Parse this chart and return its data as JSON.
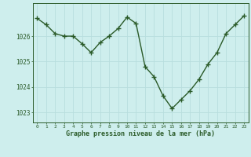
{
  "x": [
    0,
    1,
    2,
    3,
    4,
    5,
    6,
    7,
    8,
    9,
    10,
    11,
    12,
    13,
    14,
    15,
    16,
    17,
    18,
    19,
    20,
    21,
    22,
    23
  ],
  "y": [
    1026.7,
    1026.45,
    1026.1,
    1026.0,
    1026.0,
    1025.7,
    1025.35,
    1025.75,
    1026.0,
    1026.3,
    1026.75,
    1026.5,
    1024.8,
    1024.4,
    1023.65,
    1023.15,
    1023.5,
    1023.85,
    1024.3,
    1024.9,
    1025.35,
    1026.1,
    1026.45,
    1026.8
  ],
  "line_color": "#2a5a28",
  "marker_color": "#2a5a28",
  "bg_color": "#ceeeed",
  "grid_color": "#b8dede",
  "xlabel": "Graphe pression niveau de la mer (hPa)",
  "xlabel_color": "#2a5a28",
  "tick_color": "#2a5a28",
  "ylim": [
    1022.6,
    1027.3
  ],
  "yticks": [
    1023,
    1024,
    1025,
    1026
  ],
  "xticks": [
    0,
    1,
    2,
    3,
    4,
    5,
    6,
    7,
    8,
    9,
    10,
    11,
    12,
    13,
    14,
    15,
    16,
    17,
    18,
    19,
    20,
    21,
    22,
    23
  ],
  "marker_size": 4,
  "line_width": 1.0
}
